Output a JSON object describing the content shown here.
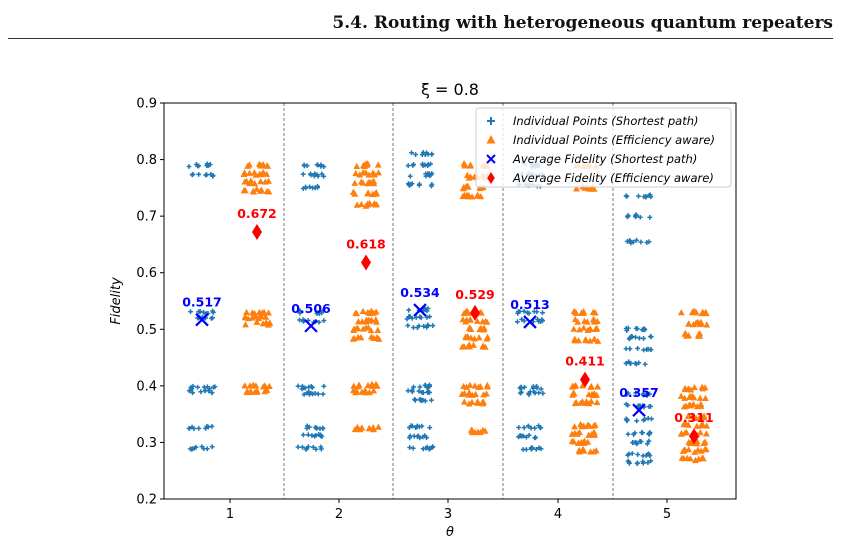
{
  "header": {
    "title": "5.4.  Routing with heterogeneous quantum repeaters"
  },
  "chart_data": {
    "type": "scatter",
    "title": "ξ = 0.8",
    "xlabel": "θ",
    "ylabel": "Fidelity",
    "categories": [
      "1",
      "2",
      "3",
      "4",
      "5"
    ],
    "ylim": [
      0.2,
      0.9
    ],
    "yticks": [
      0.2,
      0.3,
      0.4,
      0.5,
      0.6,
      0.7,
      0.8,
      0.9
    ],
    "grid": "vertical dashed separators between θ groups",
    "legend_position": "top-right",
    "series": [
      {
        "name": "Individual Points (Shortest path)",
        "marker": "plus",
        "color": "#1f77b4",
        "clusters": [
          {
            "category": "1",
            "levels": [
              0.79,
              0.773,
              0.53,
              0.52,
              0.397,
              0.39,
              0.327,
              0.29
            ]
          },
          {
            "category": "2",
            "levels": [
              0.79,
              0.773,
              0.75,
              0.53,
              0.515,
              0.397,
              0.387,
              0.327,
              0.312,
              0.29
            ]
          },
          {
            "category": "3",
            "levels": [
              0.81,
              0.79,
              0.773,
              0.755,
              0.535,
              0.52,
              0.505,
              0.4,
              0.39,
              0.375,
              0.327,
              0.31,
              0.29
            ]
          },
          {
            "category": "4",
            "levels": [
              0.79,
              0.773,
              0.755,
              0.53,
              0.515,
              0.397,
              0.387,
              0.327,
              0.31,
              0.29
            ]
          },
          {
            "category": "5",
            "levels": [
              0.735,
              0.7,
              0.655,
              0.5,
              0.485,
              0.465,
              0.44,
              0.385,
              0.365,
              0.34,
              0.315,
              0.3,
              0.278,
              0.265
            ]
          }
        ]
      },
      {
        "name": "Individual Points (Efficiency aware)",
        "marker": "triangle",
        "color": "#ff7f0e",
        "clusters": [
          {
            "category": "1",
            "levels": [
              0.79,
              0.775,
              0.76,
              0.745,
              0.53,
              0.52,
              0.51,
              0.4,
              0.39
            ]
          },
          {
            "category": "2",
            "levels": [
              0.79,
              0.775,
              0.76,
              0.74,
              0.72,
              0.53,
              0.515,
              0.5,
              0.485,
              0.4,
              0.39,
              0.325
            ]
          },
          {
            "category": "3",
            "levels": [
              0.79,
              0.77,
              0.75,
              0.735,
              0.53,
              0.515,
              0.5,
              0.485,
              0.47,
              0.4,
              0.385,
              0.37,
              0.32
            ]
          },
          {
            "category": "4",
            "levels": [
              0.79,
              0.75,
              0.53,
              0.515,
              0.5,
              0.48,
              0.4,
              0.385,
              0.37,
              0.33,
              0.315,
              0.3,
              0.285
            ]
          },
          {
            "category": "5",
            "levels": [
              0.53,
              0.51,
              0.49,
              0.395,
              0.38,
              0.365,
              0.345,
              0.33,
              0.315,
              0.3,
              0.285,
              0.27
            ]
          }
        ]
      },
      {
        "name": "Average Fidelity (Shortest path)",
        "marker": "x",
        "color": "#0000ff",
        "values": [
          0.517,
          0.506,
          0.534,
          0.513,
          0.357
        ],
        "labels": [
          "0.517",
          "0.506",
          "0.534",
          "0.513",
          "0.357"
        ]
      },
      {
        "name": "Average Fidelity (Efficiency aware)",
        "marker": "diamond",
        "color": "#ff0000",
        "values": [
          0.672,
          0.618,
          0.529,
          0.411,
          0.311
        ],
        "labels": [
          "0.672",
          "0.618",
          "0.529",
          "0.411",
          "0.311"
        ]
      }
    ]
  }
}
